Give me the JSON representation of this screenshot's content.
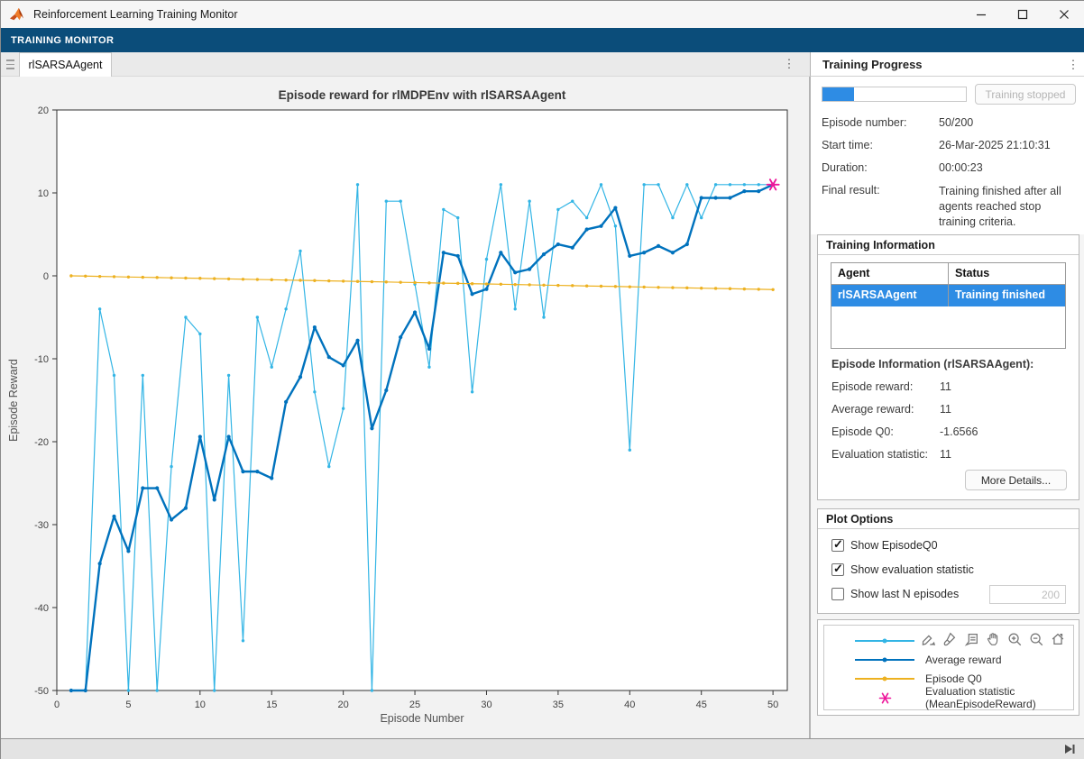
{
  "window": {
    "title": "Reinforcement Learning Training Monitor"
  },
  "ribbon": {
    "tab_label": "TRAINING MONITOR"
  },
  "document_tab": {
    "label": "rlSARSAAgent"
  },
  "training_progress": {
    "panel_title": "Training Progress",
    "progress_percent": 22,
    "stop_button_label": "Training stopped",
    "fields": [
      {
        "label": "Episode number:",
        "value": "50/200"
      },
      {
        "label": "Start time:",
        "value": "26-Mar-2025 21:10:31"
      },
      {
        "label": "Duration:",
        "value": "00:00:23"
      },
      {
        "label": "Final result:",
        "value": "Training finished after all agents reached stop training criteria."
      }
    ]
  },
  "training_information": {
    "panel_title": "Training Information",
    "table": {
      "headers": [
        "Agent",
        "Status"
      ],
      "row": {
        "agent": "rlSARSAAgent",
        "status": "Training finished",
        "selected": true
      }
    },
    "episode_info_title": "Episode Information (rlSARSAAgent):",
    "fields": [
      {
        "label": "Episode reward:",
        "value": "11"
      },
      {
        "label": "Average reward:",
        "value": "11"
      },
      {
        "label": "Episode Q0:",
        "value": "-1.6566"
      },
      {
        "label": "Evaluation statistic:",
        "value": "11"
      }
    ],
    "more_details_button_label": "More Details..."
  },
  "plot_options": {
    "panel_title": "Plot Options",
    "options": [
      {
        "label": "Show EpisodeQ0",
        "checked": true
      },
      {
        "label": "Show evaluation statistic",
        "checked": true
      },
      {
        "label": "Show last N episodes",
        "checked": false
      }
    ],
    "n_episodes_value": "200"
  },
  "legend": {
    "entries": [
      {
        "label": "Episode reward",
        "color": "#33b5e5",
        "type": "line"
      },
      {
        "label": "Average reward",
        "color": "#0072bd",
        "type": "line"
      },
      {
        "label": "Episode Q0",
        "color": "#edb120",
        "type": "line"
      },
      {
        "label": "Evaluation statistic",
        "label2": "(MeanEpisodeReward)",
        "color": "#ed169b",
        "type": "asterisk"
      }
    ]
  },
  "axes_toolbar": {
    "icons": [
      "export",
      "brush",
      "datatips",
      "pan",
      "zoom-in",
      "zoom-out",
      "restore-view"
    ]
  },
  "chart_data": {
    "type": "line",
    "title": "Episode reward for rlMDPEnv with rlSARSAAgent",
    "xlabel": "Episode Number",
    "ylabel": "Episode Reward",
    "xlim": [
      0,
      51
    ],
    "ylim": [
      -50,
      20
    ],
    "xticks": [
      0,
      5,
      10,
      15,
      20,
      25,
      30,
      35,
      40,
      45,
      50
    ],
    "yticks": [
      -50,
      -40,
      -30,
      -20,
      -10,
      0,
      10,
      20
    ],
    "grid": false,
    "legend_position": "bottom-right-panel",
    "x": [
      1,
      2,
      3,
      4,
      5,
      6,
      7,
      8,
      9,
      10,
      11,
      12,
      13,
      14,
      15,
      16,
      17,
      18,
      19,
      20,
      21,
      22,
      23,
      24,
      25,
      26,
      27,
      28,
      29,
      30,
      31,
      32,
      33,
      34,
      35,
      36,
      37,
      38,
      39,
      40,
      41,
      42,
      43,
      44,
      45,
      46,
      47,
      48,
      49,
      50
    ],
    "series": [
      {
        "name": "Episode reward",
        "color": "#33b5e5",
        "width": 1.2,
        "marker_r": 1.7,
        "values": [
          -50,
          -50,
          -4,
          -12,
          -50,
          -12,
          -50,
          -23,
          -5,
          -7,
          -50,
          -12,
          -44,
          -5,
          -11,
          -4,
          3,
          -14,
          -23,
          -16,
          11,
          -50,
          9,
          9,
          -1,
          -11,
          8,
          7,
          -14,
          2,
          11,
          -4,
          9,
          -5,
          8,
          9,
          7,
          11,
          6,
          -21,
          11,
          11,
          7,
          11,
          7,
          11,
          11,
          11,
          11,
          11
        ]
      },
      {
        "name": "Average reward",
        "color": "#0072bd",
        "width": 2.4,
        "marker_r": 2.1,
        "values": [
          -50,
          -50,
          -34.7,
          -29,
          -33.2,
          -25.6,
          -25.6,
          -29.4,
          -28,
          -19.4,
          -27,
          -19.4,
          -23.6,
          -23.6,
          -24.4,
          -15.2,
          -12.2,
          -6.2,
          -9.8,
          -10.8,
          -7.8,
          -18.4,
          -13.8,
          -7.4,
          -4.4,
          -8.8,
          2.8,
          2.4,
          -2.2,
          -1.6,
          2.8,
          0.4,
          0.8,
          2.6,
          3.8,
          3.4,
          5.6,
          6,
          8.2,
          2.4,
          2.8,
          3.6,
          2.8,
          3.8,
          9.4,
          9.4,
          9.4,
          10.2,
          10.2,
          11
        ]
      },
      {
        "name": "Episode Q0",
        "color": "#edb120",
        "width": 1.2,
        "marker_r": 1.7,
        "values": [
          0,
          -0.03,
          -0.07,
          -0.1,
          -0.14,
          -0.17,
          -0.2,
          -0.24,
          -0.27,
          -0.3,
          -0.34,
          -0.37,
          -0.41,
          -0.44,
          -0.47,
          -0.51,
          -0.54,
          -0.57,
          -0.61,
          -0.64,
          -0.68,
          -0.71,
          -0.74,
          -0.78,
          -0.81,
          -0.85,
          -0.88,
          -0.91,
          -0.95,
          -0.98,
          -1.01,
          -1.05,
          -1.08,
          -1.12,
          -1.15,
          -1.18,
          -1.22,
          -1.25,
          -1.28,
          -1.32,
          -1.35,
          -1.39,
          -1.42,
          -1.45,
          -1.49,
          -1.52,
          -1.55,
          -1.59,
          -1.62,
          -1.66
        ]
      }
    ],
    "evaluation_statistic": {
      "name": "Evaluation statistic (MeanEpisodeReward)",
      "episode": 50,
      "value": 11,
      "color": "#ed169b",
      "marker": "asterisk"
    }
  },
  "colors": {
    "ribbon": "#0b4d7a",
    "selection": "#2e8ce4",
    "progress_fill": "#2e8ce4"
  }
}
